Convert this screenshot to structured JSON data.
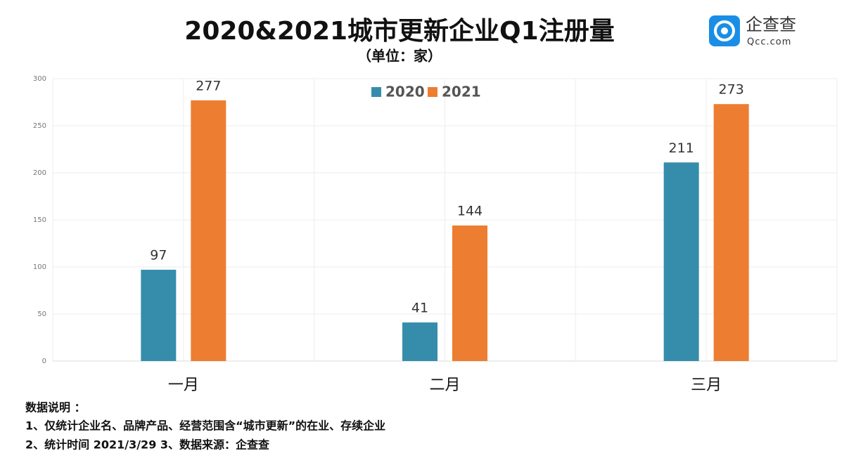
{
  "chart_data": {
    "type": "bar",
    "title": "2020&2021城市更新企业Q1注册量",
    "subtitle": "（单位：家）",
    "categories": [
      "一月",
      "二月",
      "三月"
    ],
    "series": [
      {
        "name": "2020",
        "color": "#368dab",
        "values": [
          97,
          41,
          211
        ]
      },
      {
        "name": "2021",
        "color": "#ed7d31",
        "values": [
          277,
          144,
          273
        ]
      }
    ],
    "ylim": [
      0,
      300
    ],
    "yticks": [
      0,
      50,
      100,
      150,
      200,
      250,
      300
    ],
    "grid": true,
    "legend": "top"
  },
  "logo": {
    "name": "企查查",
    "site": "Qcc.com"
  },
  "notes": {
    "heading": "数据说明 ：",
    "lines": [
      "1、仅统计企业名、品牌产品、经营范围含“城市更新”的在业、存续企业",
      "2、统计时间 2021/3/29  3、数据来源：企查查"
    ]
  }
}
